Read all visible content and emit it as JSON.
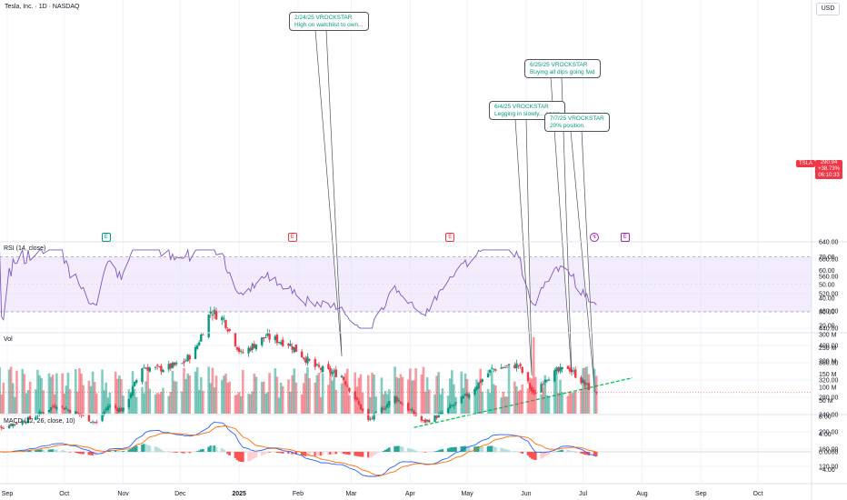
{
  "header": {
    "title": "Tesla, Inc. · 1D · NASDAQ",
    "currency": "USD",
    "symbol": "TSLA"
  },
  "price_box": {
    "price": "290.94",
    "change": "+38.73%",
    "countdown": "06:10:33"
  },
  "panes": {
    "rsi_title": "RSI (14, close)",
    "vol_title": "Vol",
    "macd_title": "MACD (12, 26, close, 10)"
  },
  "events": [
    {
      "date": "2024-10-23",
      "label": "E",
      "kind": "earnings"
    },
    {
      "date": "2025-01-29",
      "label": "E",
      "kind": "earnings"
    },
    {
      "date": "2025-04-22",
      "label": "E",
      "kind": "earnings"
    },
    {
      "date": "2025-07-07",
      "label": "↯",
      "kind": "split-dividend"
    },
    {
      "date": "2025-07-23",
      "label": "E",
      "kind": "earnings"
    }
  ],
  "annotations": [
    {
      "date": "2025-02-24",
      "price": 375,
      "line1": "2/24/25 VROCKSTAR",
      "line2": "High on watchlist to own..."
    },
    {
      "date": "2025-06-04",
      "price": 330,
      "line1": "6/4/25 VROCKSTAR",
      "line2": "Legging in slowly... again"
    },
    {
      "date": "2025-06-25",
      "price": 330,
      "line1": "6/25/25 VROCKSTAR",
      "line2": "Buying all dips going fwd"
    },
    {
      "date": "2025-07-07",
      "price": 300,
      "line1": "7/7/25 VROCKSTAR",
      "line2": "20% position."
    }
  ],
  "colors": {
    "up": "#089981",
    "down": "#f23645",
    "rsi_line": "#7e57c2",
    "rsi_band": "#e8ddfa",
    "trend": "#00c853",
    "macd": "#2962ff",
    "signal": "#ff6d00",
    "grid": "#f0f3fa"
  },
  "chart_data": {
    "type": "candlestick",
    "x_ticks": [
      "Sep",
      "Oct",
      "Nov",
      "Dec",
      "2025",
      "Feb",
      "Mar",
      "Apr",
      "May",
      "Jun",
      "Jul",
      "Aug",
      "Sep",
      "Oct"
    ],
    "x_tick_dates": [
      "2024-09-01",
      "2024-10-01",
      "2024-11-01",
      "2024-12-01",
      "2025-01-01",
      "2025-02-01",
      "2025-03-01",
      "2025-04-01",
      "2025-05-01",
      "2025-06-01",
      "2025-07-01",
      "2025-08-01",
      "2025-09-01",
      "2025-10-01"
    ],
    "price_axis": {
      "ticks": [
        120,
        160,
        200,
        240,
        280,
        320,
        360,
        400,
        440,
        480,
        520,
        560,
        600,
        640
      ],
      "range": [
        110,
        650
      ]
    },
    "rsi_axis": {
      "ticks": [
        20,
        30,
        40,
        50,
        60,
        70
      ],
      "band": [
        30,
        70
      ],
      "range": [
        16,
        76
      ]
    },
    "vol_axis": {
      "ticks": [
        "50 M",
        "100 M",
        "150 M",
        "200 M",
        "250 M",
        "300 M"
      ],
      "range_millions": [
        0,
        300
      ]
    },
    "macd_axis": {
      "ticks": [
        "8.00",
        "4.00",
        "0.0000",
        "−4.00"
      ],
      "range": [
        -6,
        8.5
      ]
    },
    "last_price": 290.94,
    "trendline": {
      "start": {
        "date": "2025-04-03",
        "price": 210
      },
      "end": {
        "date": "2025-07-27",
        "price": 325
      }
    },
    "anchors": [
      {
        "date": "2024-08-30",
        "close": 212
      },
      {
        "date": "2024-09-13",
        "close": 230
      },
      {
        "date": "2024-09-27",
        "close": 263
      },
      {
        "date": "2024-10-09",
        "close": 240
      },
      {
        "date": "2024-10-18",
        "close": 220
      },
      {
        "date": "2024-10-24",
        "close": 260
      },
      {
        "date": "2024-11-01",
        "close": 250
      },
      {
        "date": "2024-11-11",
        "close": 350
      },
      {
        "date": "2024-11-20",
        "close": 345
      },
      {
        "date": "2024-12-02",
        "close": 357
      },
      {
        "date": "2024-12-09",
        "close": 390
      },
      {
        "date": "2024-12-17",
        "close": 480
      },
      {
        "date": "2024-12-24",
        "close": 460
      },
      {
        "date": "2025-01-02",
        "close": 380
      },
      {
        "date": "2025-01-15",
        "close": 420
      },
      {
        "date": "2025-01-27",
        "close": 405
      },
      {
        "date": "2025-02-10",
        "close": 350
      },
      {
        "date": "2025-02-24",
        "close": 330
      },
      {
        "date": "2025-03-10",
        "close": 225
      },
      {
        "date": "2025-03-24",
        "close": 280
      },
      {
        "date": "2025-04-08",
        "close": 222
      },
      {
        "date": "2025-04-17",
        "close": 240
      },
      {
        "date": "2025-05-01",
        "close": 285
      },
      {
        "date": "2025-05-14",
        "close": 345
      },
      {
        "date": "2025-05-28",
        "close": 355
      },
      {
        "date": "2025-06-05",
        "close": 285
      },
      {
        "date": "2025-06-11",
        "close": 325
      },
      {
        "date": "2025-06-23",
        "close": 350
      },
      {
        "date": "2025-07-02",
        "close": 310
      },
      {
        "date": "2025-07-07",
        "close": 290.94
      }
    ]
  }
}
